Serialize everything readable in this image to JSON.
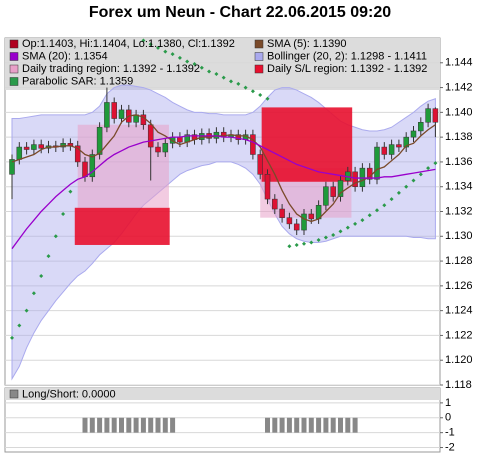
{
  "chart_data": [
    {
      "type": "candlestick",
      "title": "Forex um Neun - Chart 22.06.2015 09:20",
      "candle_legend": "Op:1.1403, Hi:1.1404, Lo:1.1380, Cl:1.1392",
      "candle_legend_color": "#b00020",
      "up_color": "#1f9a3a",
      "down_color": "#dd1133",
      "open": [
        1.135,
        1.1362,
        1.1372,
        1.137,
        1.1374,
        1.1371,
        1.1373,
        1.1372,
        1.1375,
        1.1373,
        1.136,
        1.1348,
        1.1366,
        1.1388,
        1.1408,
        1.1395,
        1.1402,
        1.1392,
        1.1398,
        1.139,
        1.1372,
        1.1368,
        1.1375,
        1.138,
        1.1376,
        1.1382,
        1.1378,
        1.1383,
        1.1379,
        1.1384,
        1.138,
        1.1382,
        1.1378,
        1.1382,
        1.1366,
        1.135,
        1.133,
        1.1322,
        1.1315,
        1.131,
        1.1305,
        1.1318,
        1.1314,
        1.1325,
        1.134,
        1.1332,
        1.1345,
        1.1352,
        1.134,
        1.1355,
        1.1346,
        1.1372,
        1.1366,
        1.1374,
        1.1372,
        1.138,
        1.1385,
        1.1392,
        1.1403
      ],
      "high": [
        1.1366,
        1.1376,
        1.1376,
        1.1378,
        1.1378,
        1.1377,
        1.1377,
        1.1379,
        1.1379,
        1.1377,
        1.1364,
        1.137,
        1.1392,
        1.142,
        1.1412,
        1.1406,
        1.1406,
        1.1402,
        1.1402,
        1.1394,
        1.1376,
        1.1379,
        1.1384,
        1.1384,
        1.1386,
        1.1386,
        1.1387,
        1.1387,
        1.1388,
        1.1388,
        1.1386,
        1.1386,
        1.1386,
        1.1386,
        1.137,
        1.1354,
        1.1334,
        1.1326,
        1.1319,
        1.1314,
        1.1322,
        1.1322,
        1.1329,
        1.1344,
        1.1344,
        1.1349,
        1.1356,
        1.1356,
        1.1359,
        1.1359,
        1.1376,
        1.1376,
        1.1378,
        1.1378,
        1.1384,
        1.1389,
        1.1396,
        1.1407,
        1.1404
      ],
      "low": [
        1.133,
        1.1358,
        1.1366,
        1.1366,
        1.1367,
        1.1367,
        1.1368,
        1.1368,
        1.1369,
        1.1356,
        1.1344,
        1.1344,
        1.1362,
        1.1384,
        1.1391,
        1.1391,
        1.1388,
        1.1388,
        1.1386,
        1.1345,
        1.1364,
        1.1364,
        1.1371,
        1.1372,
        1.1372,
        1.1374,
        1.1374,
        1.1375,
        1.1375,
        1.1376,
        1.1376,
        1.1374,
        1.1374,
        1.1362,
        1.1346,
        1.1326,
        1.1318,
        1.1311,
        1.1306,
        1.1301,
        1.1301,
        1.131,
        1.131,
        1.1321,
        1.1328,
        1.1328,
        1.1341,
        1.1336,
        1.1336,
        1.1342,
        1.1342,
        1.1362,
        1.1362,
        1.1368,
        1.1368,
        1.1376,
        1.1381,
        1.1388,
        1.138
      ],
      "close": [
        1.1362,
        1.1372,
        1.137,
        1.1374,
        1.1371,
        1.1373,
        1.1372,
        1.1375,
        1.1373,
        1.136,
        1.1348,
        1.1366,
        1.1388,
        1.1408,
        1.1395,
        1.1402,
        1.1392,
        1.1398,
        1.139,
        1.1372,
        1.1368,
        1.1375,
        1.138,
        1.1376,
        1.1382,
        1.1378,
        1.1383,
        1.1379,
        1.1384,
        1.138,
        1.1382,
        1.1378,
        1.1382,
        1.1366,
        1.135,
        1.133,
        1.1322,
        1.1315,
        1.131,
        1.1305,
        1.1318,
        1.1314,
        1.1325,
        1.134,
        1.1332,
        1.1345,
        1.1352,
        1.134,
        1.1355,
        1.1346,
        1.1372,
        1.1366,
        1.1374,
        1.1372,
        1.138,
        1.1385,
        1.1392,
        1.1403,
        1.1392
      ],
      "series": [
        {
          "name": "SMA (5): 1.1390",
          "style": "line",
          "color": "#7a4a2a",
          "values": [
            1.136,
            1.1362,
            1.1364,
            1.1366,
            1.137,
            1.1372,
            1.1372,
            1.1373,
            1.1373,
            1.1371,
            1.1366,
            1.1364,
            1.1367,
            1.1374,
            1.1381,
            1.1392,
            1.1397,
            1.1398,
            1.1396,
            1.1391,
            1.1384,
            1.1381,
            1.1377,
            1.1374,
            1.1376,
            1.1378,
            1.138,
            1.138,
            1.1381,
            1.1381,
            1.1382,
            1.1381,
            1.1381,
            1.1378,
            1.1372,
            1.1361,
            1.135,
            1.1337,
            1.1326,
            1.1318,
            1.1314,
            1.1312,
            1.1314,
            1.132,
            1.1326,
            1.1335,
            1.1339,
            1.1343,
            1.1345,
            1.1348,
            1.1354,
            1.1356,
            1.1361,
            1.1366,
            1.1373,
            1.1375,
            1.1381,
            1.1386,
            1.139
          ]
        },
        {
          "name": "SMA (20): 1.1354",
          "style": "line",
          "color": "#9900cc",
          "values": [
            1.129,
            1.1298,
            1.1306,
            1.1313,
            1.132,
            1.1326,
            1.1332,
            1.1337,
            1.1342,
            1.1346,
            1.1348,
            1.1352,
            1.1357,
            1.1362,
            1.1366,
            1.1369,
            1.1372,
            1.1374,
            1.1376,
            1.1377,
            1.1378,
            1.1379,
            1.138,
            1.138,
            1.1381,
            1.1381,
            1.1381,
            1.1381,
            1.1381,
            1.138,
            1.138,
            1.1379,
            1.1378,
            1.1376,
            1.1373,
            1.137,
            1.1367,
            1.1364,
            1.1361,
            1.1358,
            1.1356,
            1.1354,
            1.1352,
            1.1351,
            1.135,
            1.1349,
            1.1348,
            1.1347,
            1.1347,
            1.1347,
            1.1347,
            1.1348,
            1.1348,
            1.1349,
            1.135,
            1.1351,
            1.1352,
            1.1353,
            1.1354
          ]
        },
        {
          "name": "Bollinger (20, 2): 1.1298 - 1.1411",
          "style": "band",
          "color": "#aaaaee",
          "upper": [
            1.1395,
            1.1395,
            1.1396,
            1.1397,
            1.1398,
            1.1398,
            1.1398,
            1.1398,
            1.1398,
            1.1398,
            1.1398,
            1.14,
            1.1405,
            1.1415,
            1.142,
            1.1422,
            1.1422,
            1.1421,
            1.142,
            1.1418,
            1.1415,
            1.1412,
            1.1408,
            1.1405,
            1.1402,
            1.14,
            1.14,
            1.1399,
            1.1399,
            1.1398,
            1.1398,
            1.1398,
            1.1398,
            1.14,
            1.1405,
            1.1412,
            1.1418,
            1.142,
            1.142,
            1.1418,
            1.1415,
            1.1412,
            1.1408,
            1.1403,
            1.1398,
            1.1393,
            1.139,
            1.1388,
            1.1386,
            1.1385,
            1.1385,
            1.1386,
            1.1388,
            1.1392,
            1.1396,
            1.14,
            1.1405,
            1.1409,
            1.1411
          ],
          "lower": [
            1.1185,
            1.1195,
            1.121,
            1.1222,
            1.1232,
            1.124,
            1.1248,
            1.1255,
            1.1262,
            1.1268,
            1.1272,
            1.1278,
            1.1285,
            1.129,
            1.1295,
            1.1302,
            1.131,
            1.1318,
            1.1325,
            1.133,
            1.1335,
            1.134,
            1.1345,
            1.135,
            1.1353,
            1.1355,
            1.1357,
            1.1358,
            1.136,
            1.136,
            1.136,
            1.1358,
            1.1355,
            1.135,
            1.1342,
            1.133,
            1.1318,
            1.1308,
            1.1302,
            1.1298,
            1.1296,
            1.1295,
            1.1295,
            1.1296,
            1.1298,
            1.13,
            1.13,
            1.13,
            1.13,
            1.13,
            1.13,
            1.13,
            1.13,
            1.13,
            1.13,
            1.1299,
            1.1299,
            1.1298,
            1.1298
          ]
        },
        {
          "name": "Parabolic SAR: 1.1359",
          "style": "dots",
          "color": "#2a9a4a",
          "values": [
            1.1218,
            1.1228,
            1.124,
            1.1254,
            1.1268,
            1.1284,
            1.13,
            1.1318,
            1.1336,
            null,
            null,
            null,
            null,
            null,
            null,
            null,
            null,
            null,
            1.1458,
            1.1455,
            1.1452,
            1.1449,
            1.1447,
            1.1444,
            1.1441,
            1.1439,
            1.1436,
            1.1433,
            1.1431,
            1.1428,
            1.1425,
            1.1423,
            1.142,
            1.1417,
            1.1414,
            1.1411,
            null,
            null,
            1.1292,
            1.1293,
            1.1294,
            1.1295,
            1.1297,
            1.1299,
            1.1301,
            1.1304,
            1.1307,
            1.131,
            1.1313,
            1.1317,
            1.1321,
            1.1325,
            1.133,
            1.1335,
            1.134,
            1.1345,
            1.135,
            1.1355,
            1.1359
          ]
        }
      ],
      "regions": [
        {
          "name": "Daily trading region: 1.1392 - 1.1392",
          "color": "#e8a0c8",
          "areas": [
            {
              "start": 9,
              "end": 21.5,
              "low": 1.1323,
              "high": 1.139
            },
            {
              "start": 34,
              "end": 46.5,
              "low": 1.1315,
              "high": 1.1355
            }
          ]
        },
        {
          "name": "Daily S/L region: 1.1392 - 1.1392",
          "color": "#e8102e",
          "areas": [
            {
              "start": 8.6,
              "end": 21.6,
              "low": 1.1293,
              "high": 1.1323
            },
            {
              "start": 34.2,
              "end": 46.6,
              "low": 1.1344,
              "high": 1.1404
            }
          ]
        }
      ],
      "ylim": [
        1.118,
        1.146
      ],
      "yticks": [
        1.118,
        {
          "value": 1.12,
          "label": "1.120"
        },
        1.122,
        1.124,
        1.126,
        1.128,
        {
          "value": 1.13,
          "label": "1.130"
        },
        1.132,
        1.134,
        1.136,
        1.138,
        {
          "value": 1.14,
          "label": "1.140"
        },
        1.142,
        1.144
      ],
      "grid": true
    },
    {
      "type": "bar",
      "legend": "Long/Short: 0.0000",
      "color": "#888888",
      "values": [
        0,
        0,
        0,
        0,
        0,
        0,
        0,
        0,
        0,
        0,
        -1,
        -1,
        -1,
        -1,
        -1,
        -1,
        -1,
        -1,
        -1,
        -1,
        -1,
        -1,
        -1,
        0,
        0,
        0,
        0,
        0,
        0,
        0,
        0,
        0,
        0,
        0,
        0,
        -1,
        -1,
        -1,
        -1,
        -1,
        -1,
        -1,
        -1,
        -1,
        -1,
        -1,
        -1,
        -1,
        0,
        0,
        0,
        0,
        0,
        0,
        0,
        0,
        0,
        0,
        0
      ],
      "ylim": [
        -2.3,
        2
      ],
      "yticks": [
        1,
        0,
        -1,
        -2
      ],
      "grid": true
    }
  ]
}
